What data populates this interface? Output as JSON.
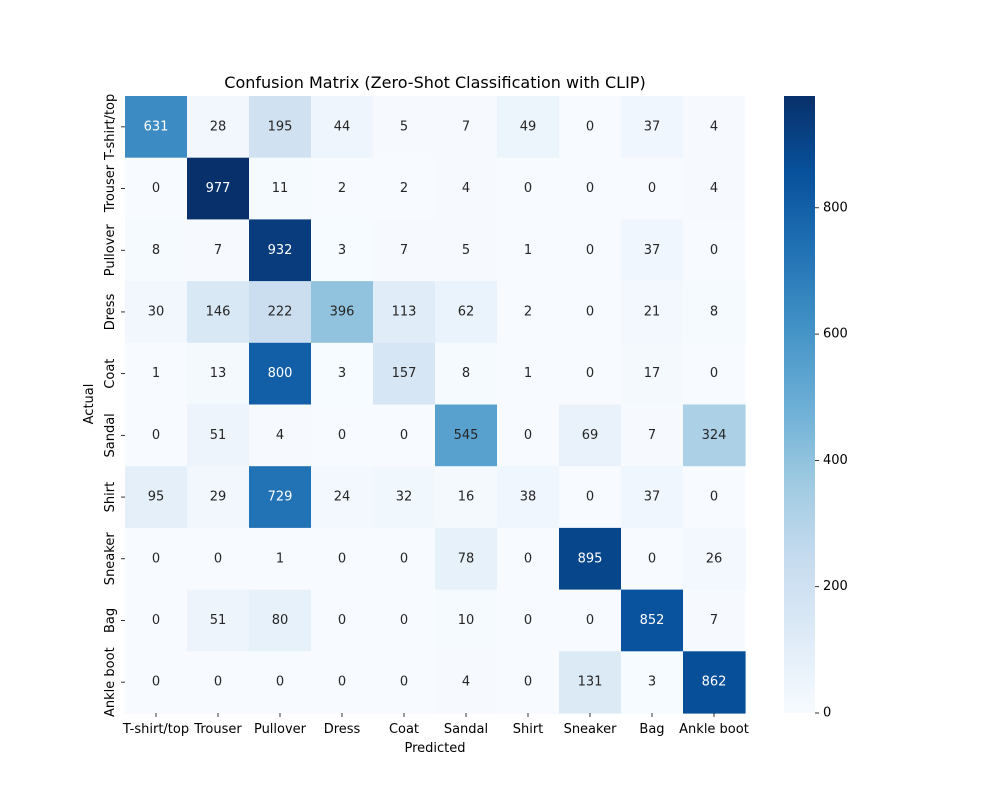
{
  "chart_data": {
    "type": "heatmap",
    "title": "Confusion Matrix (Zero-Shot Classification with CLIP)",
    "xlabel": "Predicted",
    "ylabel": "Actual",
    "x_categories": [
      "T-shirt/top",
      "Trouser",
      "Pullover",
      "Dress",
      "Coat",
      "Sandal",
      "Shirt",
      "Sneaker",
      "Bag",
      "Ankle boot"
    ],
    "y_categories": [
      "T-shirt/top",
      "Trouser",
      "Pullover",
      "Dress",
      "Coat",
      "Sandal",
      "Shirt",
      "Sneaker",
      "Bag",
      "Ankle boot"
    ],
    "values": [
      [
        631,
        28,
        195,
        44,
        5,
        7,
        49,
        0,
        37,
        4
      ],
      [
        0,
        977,
        11,
        2,
        2,
        4,
        0,
        0,
        0,
        4
      ],
      [
        8,
        7,
        932,
        3,
        7,
        5,
        1,
        0,
        37,
        0
      ],
      [
        30,
        146,
        222,
        396,
        113,
        62,
        2,
        0,
        21,
        8
      ],
      [
        1,
        13,
        800,
        3,
        157,
        8,
        1,
        0,
        17,
        0
      ],
      [
        0,
        51,
        4,
        0,
        0,
        545,
        0,
        69,
        7,
        324
      ],
      [
        95,
        29,
        729,
        24,
        32,
        16,
        38,
        0,
        37,
        0
      ],
      [
        0,
        0,
        1,
        0,
        0,
        78,
        0,
        895,
        0,
        26
      ],
      [
        0,
        51,
        80,
        0,
        0,
        10,
        0,
        0,
        852,
        7
      ],
      [
        0,
        0,
        0,
        0,
        0,
        4,
        0,
        131,
        3,
        862
      ]
    ],
    "colormap": "Blues",
    "colorbar": {
      "min": 0,
      "max": 977,
      "ticks": [
        0,
        200,
        400,
        600,
        800
      ]
    }
  }
}
